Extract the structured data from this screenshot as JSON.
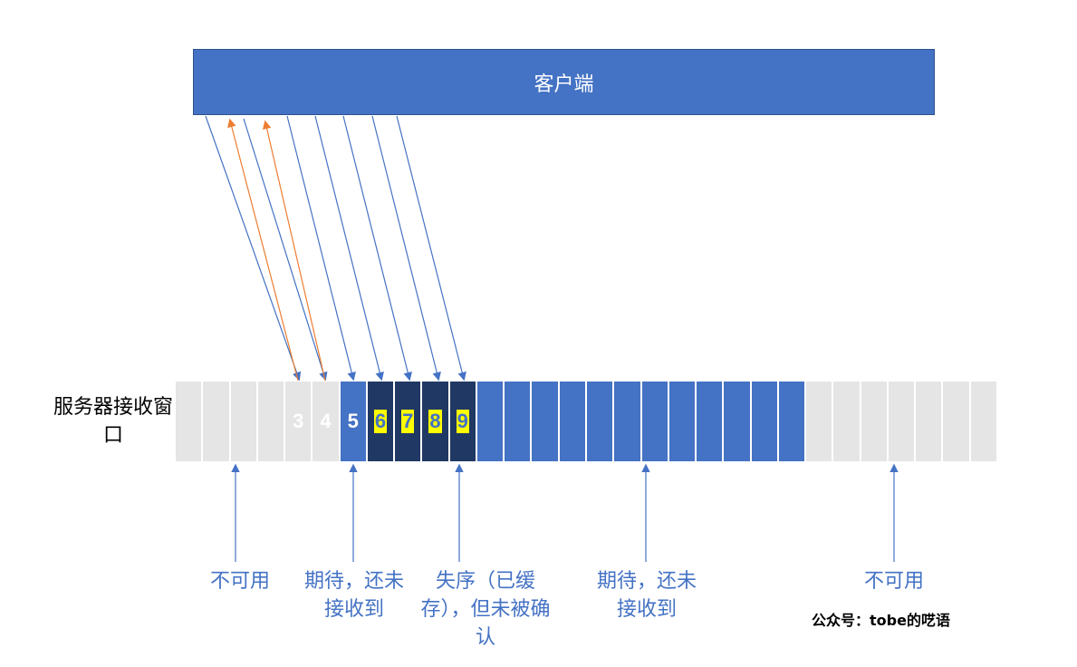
{
  "client": {
    "label": "客户端"
  },
  "window": {
    "label": "服务器接收窗口",
    "cells": [
      {
        "type": "gray",
        "text": ""
      },
      {
        "type": "gray",
        "text": ""
      },
      {
        "type": "gray",
        "text": ""
      },
      {
        "type": "gray",
        "text": ""
      },
      {
        "type": "gray",
        "text": "3"
      },
      {
        "type": "gray",
        "text": "4"
      },
      {
        "type": "blue",
        "text": "5"
      },
      {
        "type": "navy",
        "text": "6"
      },
      {
        "type": "navy",
        "text": "7"
      },
      {
        "type": "navy",
        "text": "8"
      },
      {
        "type": "navy",
        "text": "9"
      },
      {
        "type": "blue",
        "text": ""
      },
      {
        "type": "blue",
        "text": ""
      },
      {
        "type": "blue",
        "text": ""
      },
      {
        "type": "blue",
        "text": ""
      },
      {
        "type": "blue",
        "text": ""
      },
      {
        "type": "blue",
        "text": ""
      },
      {
        "type": "blue",
        "text": ""
      },
      {
        "type": "blue",
        "text": ""
      },
      {
        "type": "blue",
        "text": ""
      },
      {
        "type": "blue",
        "text": ""
      },
      {
        "type": "blue",
        "text": ""
      },
      {
        "type": "blue",
        "text": ""
      },
      {
        "type": "gray",
        "text": ""
      },
      {
        "type": "gray",
        "text": ""
      },
      {
        "type": "gray",
        "text": ""
      },
      {
        "type": "gray",
        "text": ""
      },
      {
        "type": "gray",
        "text": ""
      },
      {
        "type": "gray",
        "text": ""
      },
      {
        "type": "gray",
        "text": ""
      }
    ]
  },
  "annotations": [
    "不可用",
    "期待，还未接收到",
    "失序（已缓存），但未被确认",
    "期待，还未接收到",
    "不可用"
  ],
  "credit": "公众号：tobe的呓语",
  "colors": {
    "blue": "#4472c4",
    "navy": "#203864",
    "gray": "#e5e5e5",
    "ack": "#ed7d31",
    "highlight": "#ffff00"
  }
}
